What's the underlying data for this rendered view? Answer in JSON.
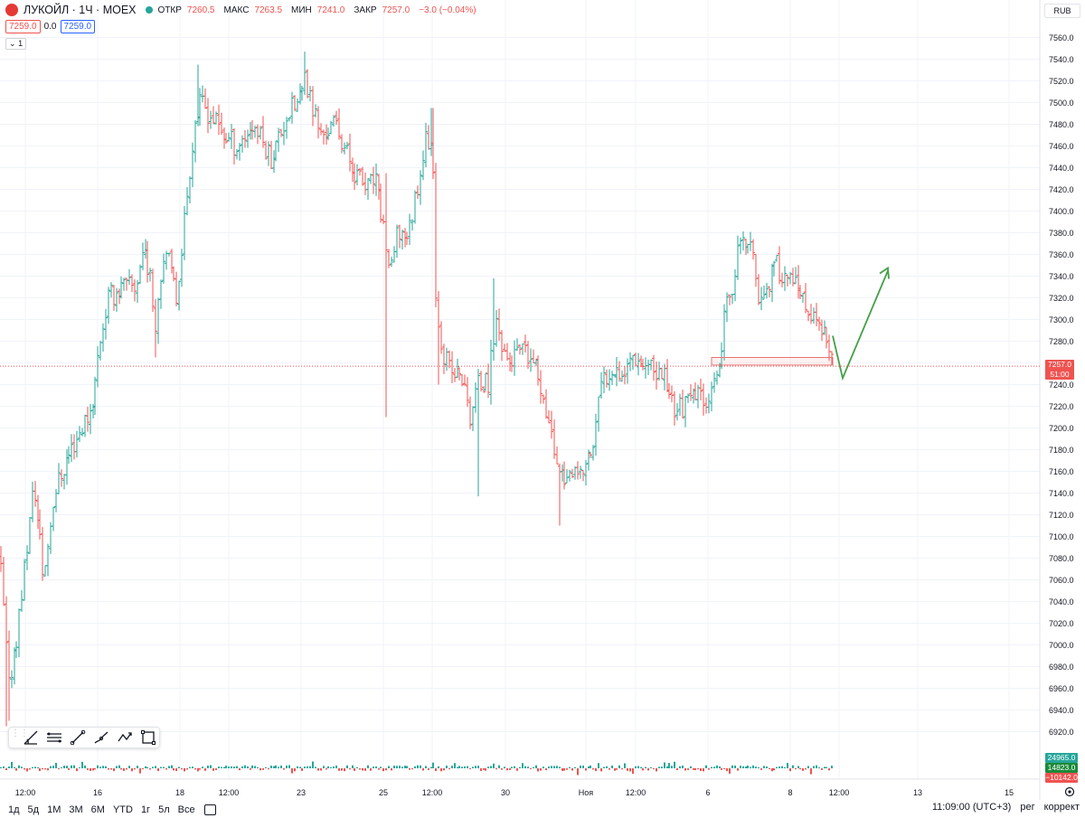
{
  "header": {
    "title": "ЛУКОЙЛ · 1Ч · MOEX",
    "open_label": "ОТКР",
    "open_value": "7260.5",
    "high_label": "МАКС",
    "high_value": "7263.5",
    "low_label": "МИН",
    "low_value": "7241.0",
    "close_label": "ЗАКР",
    "close_value": "7257.0",
    "change_value": "−3.0 (−0.04%)",
    "bid": "7259.0",
    "spread": "0.0",
    "ask": "7259.0",
    "indicator_count": "1",
    "currency": "RUB"
  },
  "last_price": {
    "price": "7257.0",
    "countdown": "51:00"
  },
  "volume_tags": {
    "top": "24965.0",
    "mid": "14823.0",
    "bottom": "−10142.0"
  },
  "toolbar": {
    "icons": [
      "grip-icon",
      "trend-angle-icon",
      "parallel-channel-icon",
      "trend-line-icon",
      "brush-icon",
      "path-icon",
      "rectangle-icon"
    ]
  },
  "bottom_bar": {
    "timeframes": [
      "1д",
      "5д",
      "1М",
      "3М",
      "6М",
      "YTD",
      "1г",
      "5л",
      "Все"
    ],
    "time": "11:09:00 (UTC+3)",
    "scale_label": "рег",
    "corr_label": "коррект"
  },
  "colors": {
    "up": "#26a69a",
    "down": "#ef5350",
    "arrow": "#43a047",
    "box": "#e57373",
    "grid": "#f0f3fa"
  },
  "chart_data": {
    "type": "ohlc",
    "title": "ЛУКОЙЛ · 1Ч · MOEX",
    "y_ticks": [
      "7560.0",
      "7540.0",
      "7520.0",
      "7500.0",
      "7480.0",
      "7460.0",
      "7440.0",
      "7420.0",
      "7400.0",
      "7380.0",
      "7360.0",
      "7340.0",
      "7320.0",
      "7300.0",
      "7280.0",
      "7260.0",
      "7240.0",
      "7220.0",
      "7200.0",
      "7180.0",
      "7160.0",
      "7140.0",
      "7120.0",
      "7100.0",
      "7080.0",
      "7060.0",
      "7040.0",
      "7020.0",
      "7000.0",
      "6980.0",
      "6960.0",
      "6940.0",
      "6920.0"
    ],
    "ylim": [
      6910,
      7570
    ],
    "x_ticks": [
      "12:00",
      "16",
      "18",
      "12:00",
      "23",
      "25",
      "12:00",
      "30",
      "Ноя",
      "12:00",
      "6",
      "8",
      "12:00",
      "13",
      "15"
    ],
    "anchors": [
      [
        0,
        7080
      ],
      [
        10,
        6960
      ],
      [
        20,
        7020
      ],
      [
        38,
        7150
      ],
      [
        48,
        7060
      ],
      [
        60,
        7140
      ],
      [
        78,
        7180
      ],
      [
        90,
        7200
      ],
      [
        102,
        7220
      ],
      [
        110,
        7280
      ],
      [
        120,
        7320
      ],
      [
        135,
        7330
      ],
      [
        150,
        7330
      ],
      [
        160,
        7370
      ],
      [
        172,
        7300
      ],
      [
        182,
        7370
      ],
      [
        195,
        7320
      ],
      [
        205,
        7400
      ],
      [
        215,
        7480
      ],
      [
        222,
        7500
      ],
      [
        232,
        7490
      ],
      [
        248,
        7470
      ],
      [
        262,
        7460
      ],
      [
        280,
        7480
      ],
      [
        300,
        7450
      ],
      [
        318,
        7490
      ],
      [
        330,
        7500
      ],
      [
        338,
        7520
      ],
      [
        355,
        7470
      ],
      [
        372,
        7480
      ],
      [
        390,
        7440
      ],
      [
        405,
        7420
      ],
      [
        415,
        7430
      ],
      [
        425,
        7380
      ],
      [
        432,
        7340
      ],
      [
        440,
        7380
      ],
      [
        452,
        7380
      ],
      [
        465,
        7440
      ],
      [
        472,
        7470
      ],
      [
        478,
        7460
      ],
      [
        482,
        7320
      ],
      [
        490,
        7270
      ],
      [
        500,
        7250
      ],
      [
        510,
        7250
      ],
      [
        520,
        7210
      ],
      [
        528,
        7240
      ],
      [
        540,
        7240
      ],
      [
        548,
        7300
      ],
      [
        562,
        7260
      ],
      [
        575,
        7270
      ],
      [
        590,
        7260
      ],
      [
        602,
        7230
      ],
      [
        610,
        7190
      ],
      [
        620,
        7160
      ],
      [
        632,
        7150
      ],
      [
        645,
        7160
      ],
      [
        655,
        7180
      ],
      [
        665,
        7240
      ],
      [
        678,
        7260
      ],
      [
        690,
        7250
      ],
      [
        700,
        7270
      ],
      [
        712,
        7260
      ],
      [
        722,
        7250
      ],
      [
        735,
        7250
      ],
      [
        745,
        7220
      ],
      [
        758,
        7220
      ],
      [
        770,
        7230
      ],
      [
        782,
        7230
      ],
      [
        795,
        7240
      ],
      [
        800,
        7300
      ],
      [
        808,
        7320
      ],
      [
        815,
        7360
      ],
      [
        822,
        7370
      ],
      [
        830,
        7370
      ],
      [
        838,
        7320
      ],
      [
        848,
        7330
      ],
      [
        858,
        7350
      ],
      [
        870,
        7340
      ],
      [
        880,
        7330
      ],
      [
        890,
        7310
      ],
      [
        900,
        7300
      ],
      [
        910,
        7290
      ],
      [
        920,
        7258
      ]
    ],
    "spikes": [
      [
        426,
        "low",
        7210
      ],
      [
        427,
        "high",
        7435
      ],
      [
        478,
        "high",
        7495
      ],
      [
        484,
        "low",
        7240
      ],
      [
        529,
        "low",
        7137
      ],
      [
        547,
        "high",
        7338
      ],
      [
        620,
        "low",
        7110
      ],
      [
        172,
        "low",
        7265
      ],
      [
        338,
        "high",
        7547
      ],
      [
        218,
        "high",
        7535
      ],
      [
        10,
        "low",
        6930
      ],
      [
        8,
        "low",
        6925
      ]
    ],
    "projection": {
      "from": [
        921,
        7285
      ],
      "mid": [
        932,
        7246
      ],
      "to": [
        982,
        7345
      ]
    },
    "zone": {
      "x0": 787,
      "x1": 921,
      "y0": 7265,
      "y1": 7258
    },
    "last_close": 7257.0
  }
}
